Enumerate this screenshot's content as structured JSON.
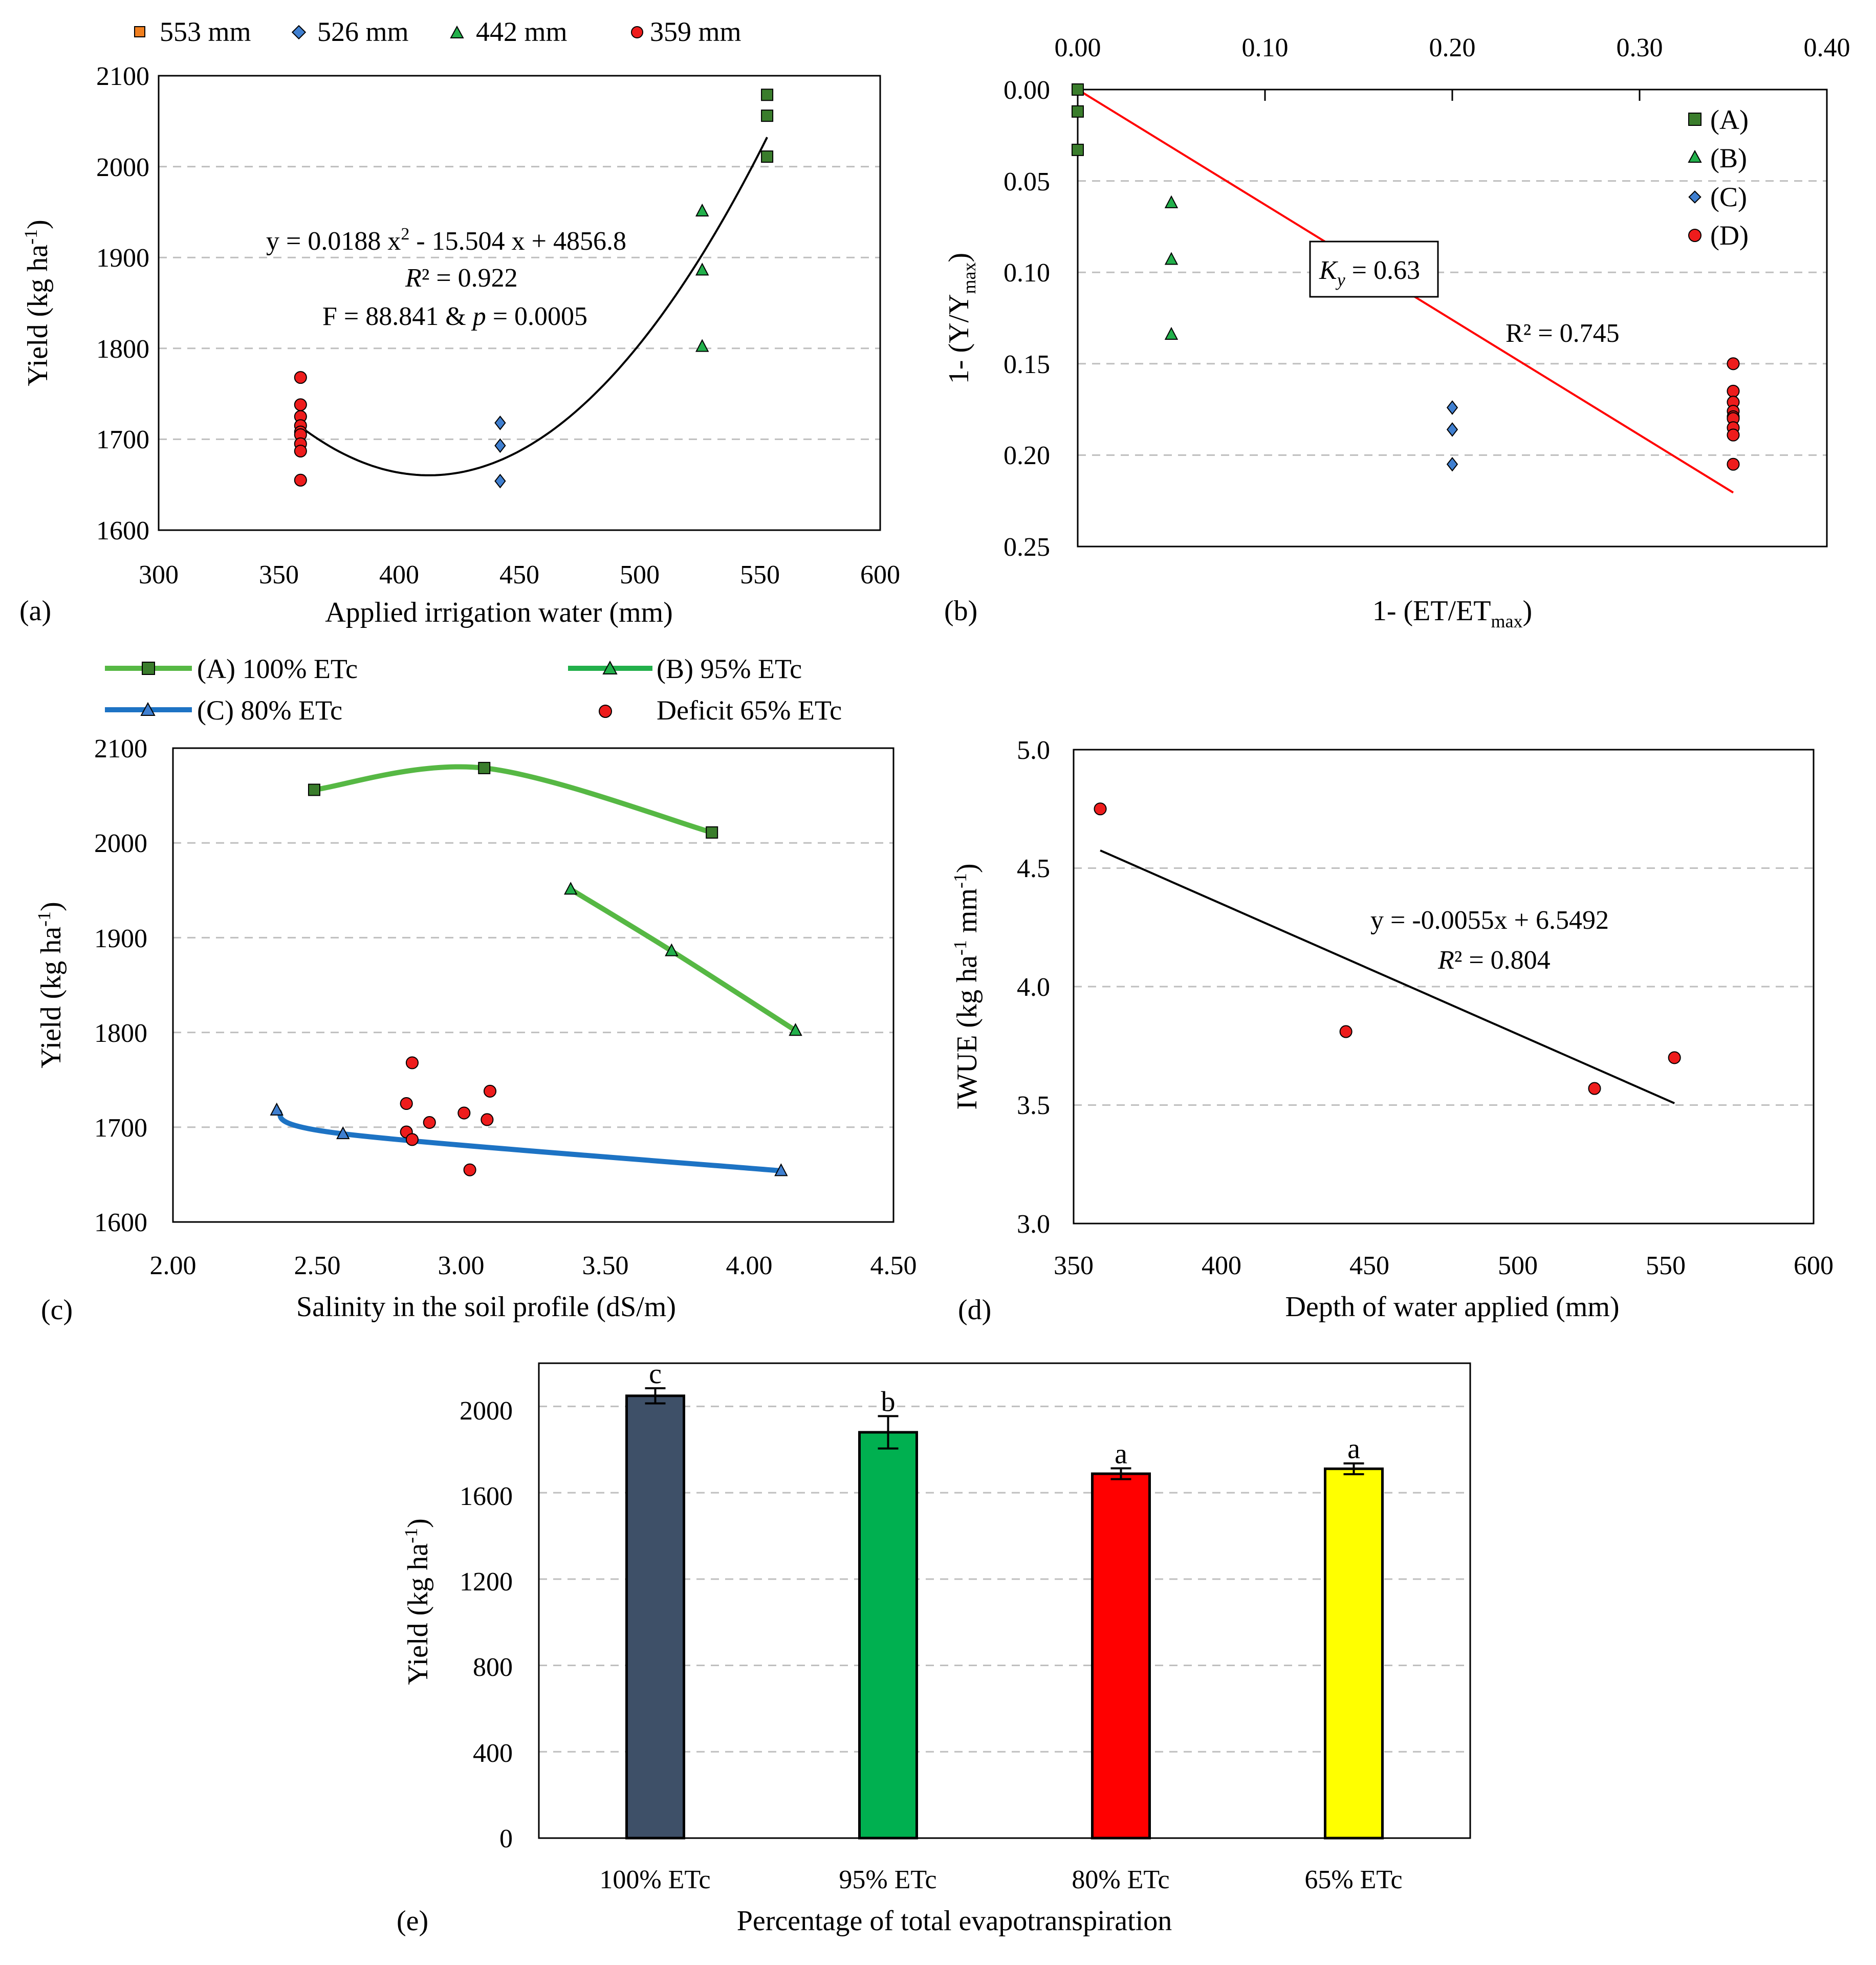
{
  "colors": {
    "green_dark": "#3a7d2c",
    "green_light": "#22b04b",
    "blue": "#3f7fd0",
    "red": "#ee1c1c",
    "orange": "#f07f1f",
    "line_green": "#56b844",
    "line_blue": "#1d73c4",
    "bar_100": "#3e5068",
    "bar_95": "#00b050",
    "bar_80": "#ff0000",
    "bar_65": "#ffff00",
    "grid": "#bfbfbf",
    "fit_red": "#ff0000"
  },
  "chart_data": [
    {
      "id": "a",
      "type": "scatter",
      "panel_label": "(a)",
      "xlabel": "Applied irrigation water  (mm)",
      "ylabel": "Yield (kg ha",
      "ylabel_sup": "-1",
      "ylabel_close": ")",
      "xlim": [
        300,
        600
      ],
      "ylim": [
        1600,
        2100
      ],
      "xticks": [
        "300",
        "350",
        "400",
        "450",
        "500",
        "550",
        "600"
      ],
      "yticks": [
        "1600",
        "1700",
        "1800",
        "1900",
        "2000",
        "2100"
      ],
      "legend": [
        "553 mm",
        "526 mm",
        "442 mm",
        "359 mm"
      ],
      "series": [
        {
          "name": "553 mm",
          "marker": "square",
          "color": "green_dark",
          "points": [
            [
              553,
              2079
            ],
            [
              553,
              2056
            ],
            [
              553,
              2011
            ]
          ]
        },
        {
          "name": "526 mm",
          "marker": "triangle",
          "color": "green_light",
          "points": [
            [
              526,
              1951
            ],
            [
              526,
              1886
            ],
            [
              526,
              1802
            ]
          ]
        },
        {
          "name": "442 mm",
          "marker": "diamond",
          "color": "blue",
          "points": [
            [
              442,
              1718
            ],
            [
              442,
              1693
            ],
            [
              442,
              1654
            ]
          ]
        },
        {
          "name": "359 mm",
          "marker": "circle",
          "color": "red",
          "points": [
            [
              359,
              1768
            ],
            [
              359,
              1738
            ],
            [
              359,
              1725
            ],
            [
              359,
              1715
            ],
            [
              359,
              1708
            ],
            [
              359,
              1705
            ],
            [
              359,
              1695
            ],
            [
              359,
              1687
            ],
            [
              359,
              1655
            ]
          ]
        }
      ],
      "fit": {
        "a": 0.0188,
        "b": -15.504,
        "c": 4856.8,
        "x_range": [
          359,
          553
        ]
      },
      "equation": "y = 0.0188 x",
      "equation_sup": "2",
      "equation_rest": " - 15.504 x + 4856.8",
      "r2_label": "R",
      "r2_value": "² = 0.922",
      "f_text": "F = 88.841 & ",
      "p_label": "p",
      "p_value": " = 0.0005"
    },
    {
      "id": "b",
      "type": "scatter",
      "panel_label": "(b)",
      "xlabel": "1- (ET/ET",
      "xlabel_sub": "max",
      "xlabel_close": ")",
      "ylabel": "1- (Y/Y",
      "ylabel_sub": "max",
      "ylabel_close": ")",
      "xlim": [
        0,
        0.4
      ],
      "ylim": [
        0,
        0.25
      ],
      "xticks": [
        "0.00",
        "0.10",
        "0.20",
        "0.30",
        "0.40"
      ],
      "yticks": [
        "0.00",
        "0.05",
        "0.10",
        "0.15",
        "0.20",
        "0.25"
      ],
      "legend": [
        "(A)",
        "(B)",
        "(C)",
        "(D)"
      ],
      "series": [
        {
          "name": "(A)",
          "marker": "square",
          "color": "green_dark",
          "points": [
            [
              0.0,
              0.0
            ],
            [
              0.0,
              0.012
            ],
            [
              0.0,
              0.033
            ]
          ]
        },
        {
          "name": "(B)",
          "marker": "triangle",
          "color": "green_light",
          "points": [
            [
              0.05,
              0.062
            ],
            [
              0.05,
              0.093
            ],
            [
              0.05,
              0.134
            ]
          ]
        },
        {
          "name": "(C)",
          "marker": "diamond",
          "color": "blue",
          "points": [
            [
              0.2,
              0.174
            ],
            [
              0.2,
              0.186
            ],
            [
              0.2,
              0.205
            ]
          ]
        },
        {
          "name": "(D)",
          "marker": "circle",
          "color": "red",
          "points": [
            [
              0.35,
              0.15
            ],
            [
              0.35,
              0.165
            ],
            [
              0.35,
              0.171
            ],
            [
              0.35,
              0.176
            ],
            [
              0.35,
              0.179
            ],
            [
              0.35,
              0.18
            ],
            [
              0.35,
              0.185
            ],
            [
              0.35,
              0.189
            ],
            [
              0.35,
              0.205
            ]
          ]
        }
      ],
      "fit": {
        "slope": 0.63,
        "intercept": 0,
        "x_range": [
          0,
          0.35
        ]
      },
      "ky_label": "K",
      "ky_sub": "y",
      "ky_value": " = 0.63",
      "r2_text": "R² = 0.745"
    },
    {
      "id": "c",
      "type": "line",
      "panel_label": "(c)",
      "xlabel": "Salinity in the soil profile (dS/m)",
      "ylabel": "Yield (kg ha",
      "ylabel_sup": "-1",
      "ylabel_close": ")",
      "xlim": [
        2.0,
        4.5
      ],
      "ylim": [
        1600,
        2100
      ],
      "xticks": [
        "2.00",
        "2.50",
        "3.00",
        "3.50",
        "4.00",
        "4.50"
      ],
      "yticks": [
        "1600",
        "1700",
        "1800",
        "1900",
        "2000",
        "2100"
      ],
      "legend": [
        "(A) 100% ETc",
        "(B) 95% ETc",
        "(C) 80% ETc",
        "Deficit 65% ETc"
      ],
      "series": [
        {
          "name": "(A) 100% ETc",
          "marker": "square",
          "color": "green_dark",
          "line": "line_green",
          "points": [
            [
              2.49,
              2056
            ],
            [
              3.08,
              2079
            ],
            [
              3.87,
              2011
            ]
          ]
        },
        {
          "name": "(B) 95% ETc",
          "marker": "triangle",
          "color": "green_light",
          "line": "line_green",
          "points": [
            [
              3.38,
              1951
            ],
            [
              3.73,
              1886
            ],
            [
              4.16,
              1802
            ]
          ]
        },
        {
          "name": "(C) 80% ETc",
          "marker": "triangle",
          "color": "blue",
          "line": "line_blue",
          "points": [
            [
              2.36,
              1718
            ],
            [
              2.59,
              1693
            ],
            [
              4.11,
              1654
            ]
          ]
        },
        {
          "name": "Deficit 65% ETc",
          "marker": "circle",
          "color": "red",
          "line": null,
          "points": [
            [
              2.83,
              1768
            ],
            [
              3.1,
              1738
            ],
            [
              2.81,
              1725
            ],
            [
              3.01,
              1715
            ],
            [
              3.09,
              1708
            ],
            [
              2.89,
              1705
            ],
            [
              2.81,
              1695
            ],
            [
              2.83,
              1687
            ],
            [
              3.03,
              1655
            ]
          ]
        }
      ]
    },
    {
      "id": "d",
      "type": "scatter",
      "panel_label": "(d)",
      "xlabel": "Depth of water applied (mm)",
      "ylabel": "IWUE (kg ha",
      "ylabel_sup1": "-1",
      "ylabel_mid": " mm",
      "ylabel_sup2": "-1",
      "ylabel_close": ")",
      "xlim": [
        350,
        600
      ],
      "ylim": [
        3.0,
        5.0
      ],
      "xticks": [
        "350",
        "400",
        "450",
        "500",
        "550",
        "600"
      ],
      "yticks": [
        "3.0",
        "3.5",
        "4.0",
        "4.5",
        "5.0"
      ],
      "series": [
        {
          "name": "IWUE",
          "marker": "circle",
          "color": "red",
          "points": [
            [
              359,
              4.75
            ],
            [
              442,
              3.81
            ],
            [
              526,
              3.57
            ],
            [
              553,
              3.7
            ]
          ]
        }
      ],
      "fit": {
        "slope": -0.0055,
        "intercept": 6.5492,
        "x_range": [
          359,
          553
        ]
      },
      "equation": "y = -0.0055x + 6.5492",
      "r2_label": "R",
      "r2_value": "² = 0.804"
    },
    {
      "id": "e",
      "type": "bar",
      "panel_label": "(e)",
      "xlabel": "Percentage of total evapotranspiration",
      "ylabel": "Yield (kg ha",
      "ylabel_sup": "-1",
      "ylabel_close": ")",
      "ylim": [
        0,
        2200
      ],
      "yticks": [
        "0",
        "400",
        "800",
        "1200",
        "1600",
        "2000"
      ],
      "categories": [
        "100% ETc",
        "95% ETc",
        "80% ETc",
        "65% ETc"
      ],
      "values": [
        2049,
        1880,
        1688,
        1711
      ],
      "errors": [
        35,
        75,
        25,
        25
      ],
      "letters": [
        "c",
        "b",
        "a",
        "a"
      ],
      "bar_colors": [
        "bar_100",
        "bar_95",
        "bar_80",
        "bar_65"
      ]
    }
  ]
}
